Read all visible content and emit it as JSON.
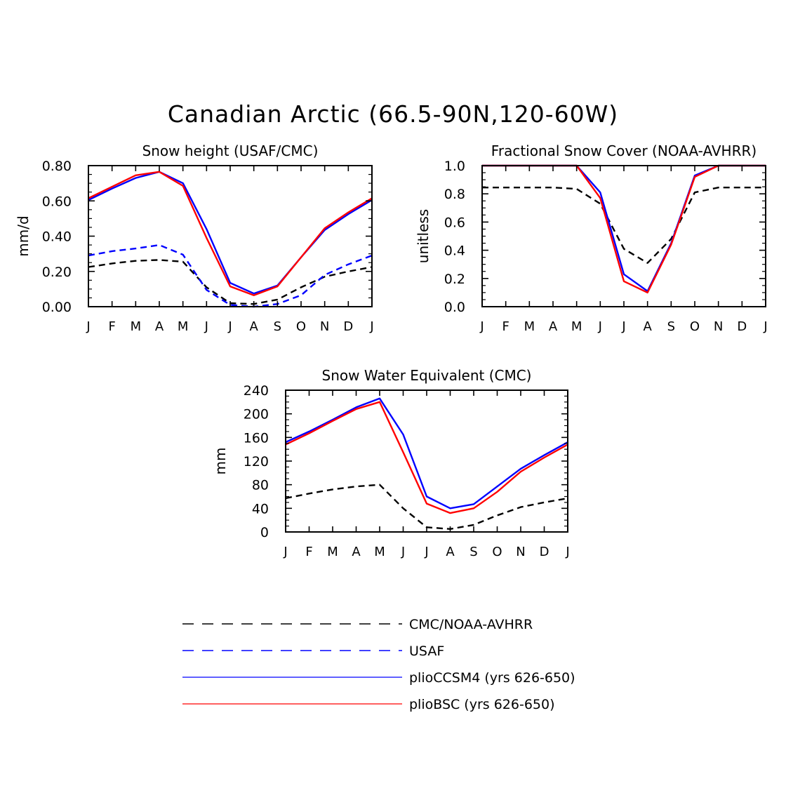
{
  "figure_title": "Canadian Arctic (66.5-90N,120-60W)",
  "legend": [
    {
      "label": "CMC/NOAA-AVHRR",
      "color": "#000000",
      "dashed": true
    },
    {
      "label": "USAF",
      "color": "#0000ff",
      "dashed": true
    },
    {
      "label": "plioCCSM4 (yrs 626-650)",
      "color": "#0000ff",
      "dashed": false
    },
    {
      "label": "plioBSC (yrs 626-650)",
      "color": "#ff0000",
      "dashed": false
    }
  ],
  "chart_data": [
    {
      "type": "line",
      "title": "Snow height (USAF/CMC)",
      "ylabel": "mm/d",
      "x": [
        "J",
        "F",
        "M",
        "A",
        "M",
        "J",
        "J",
        "A",
        "S",
        "O",
        "N",
        "D",
        "J"
      ],
      "ylim": [
        0,
        0.8
      ],
      "yticks": [
        "0.00",
        "0.20",
        "0.40",
        "0.60",
        "0.80"
      ],
      "series": [
        {
          "name": "CMC/NOAA-AVHRR",
          "color": "#000000",
          "dashed": true,
          "values": [
            0.225,
            0.245,
            0.26,
            0.265,
            0.255,
            0.11,
            0.02,
            0.015,
            0.04,
            0.11,
            0.17,
            0.2,
            0.225
          ]
        },
        {
          "name": "USAF",
          "color": "#0000ff",
          "dashed": true,
          "values": [
            0.29,
            0.315,
            0.33,
            0.35,
            0.295,
            0.095,
            0.01,
            0.0,
            0.015,
            0.065,
            0.18,
            0.24,
            0.29
          ]
        },
        {
          "name": "plioCCSM4 (yrs 626-650)",
          "color": "#0000ff",
          "dashed": false,
          "values": [
            0.605,
            0.67,
            0.73,
            0.765,
            0.7,
            0.44,
            0.135,
            0.075,
            0.12,
            0.28,
            0.435,
            0.525,
            0.605
          ]
        },
        {
          "name": "plioBSC (yrs 626-650)",
          "color": "#ff0000",
          "dashed": false,
          "values": [
            0.615,
            0.68,
            0.745,
            0.765,
            0.685,
            0.39,
            0.115,
            0.065,
            0.115,
            0.28,
            0.445,
            0.535,
            0.615
          ]
        }
      ]
    },
    {
      "type": "line",
      "title": "Fractional Snow Cover (NOAA-AVHRR)",
      "ylabel": "unitless",
      "x": [
        "J",
        "F",
        "M",
        "A",
        "M",
        "J",
        "J",
        "A",
        "S",
        "O",
        "N",
        "D",
        "J"
      ],
      "ylim": [
        0,
        1.0
      ],
      "yticks": [
        "0.0",
        "0.2",
        "0.4",
        "0.6",
        "0.8",
        "1.0"
      ],
      "series": [
        {
          "name": "CMC/NOAA-AVHRR",
          "color": "#000000",
          "dashed": true,
          "values": [
            0.845,
            0.845,
            0.845,
            0.845,
            0.835,
            0.73,
            0.41,
            0.31,
            0.48,
            0.81,
            0.845,
            0.845,
            0.845
          ]
        },
        {
          "name": "plioCCSM4 (yrs 626-650)",
          "color": "#0000ff",
          "dashed": false,
          "values": [
            1.0,
            1.0,
            1.0,
            1.0,
            1.0,
            0.81,
            0.23,
            0.11,
            0.45,
            0.93,
            1.0,
            1.0,
            1.0
          ]
        },
        {
          "name": "plioBSC (yrs 626-650)",
          "color": "#ff0000",
          "dashed": false,
          "values": [
            1.0,
            1.0,
            1.0,
            1.0,
            1.0,
            0.77,
            0.18,
            0.1,
            0.44,
            0.92,
            1.0,
            1.0,
            1.0
          ]
        }
      ]
    },
    {
      "type": "line",
      "title": "Snow Water Equivalent (CMC)",
      "ylabel": "mm",
      "x": [
        "J",
        "F",
        "M",
        "A",
        "M",
        "J",
        "J",
        "A",
        "S",
        "O",
        "N",
        "D",
        "J"
      ],
      "ylim": [
        0,
        240
      ],
      "yticks": [
        "0",
        "40",
        "80",
        "120",
        "160",
        "200",
        "240"
      ],
      "series": [
        {
          "name": "CMC/NOAA-AVHRR",
          "color": "#000000",
          "dashed": true,
          "values": [
            57,
            65,
            72,
            77,
            80,
            40,
            8,
            5,
            12,
            28,
            42,
            50,
            57
          ]
        },
        {
          "name": "plioCCSM4 (yrs 626-650)",
          "color": "#0000ff",
          "dashed": false,
          "values": [
            152,
            170,
            190,
            211,
            226,
            165,
            60,
            40,
            47,
            77,
            107,
            130,
            152
          ]
        },
        {
          "name": "plioBSC (yrs 626-650)",
          "color": "#ff0000",
          "dashed": false,
          "values": [
            148,
            167,
            188,
            208,
            220,
            135,
            48,
            32,
            40,
            68,
            102,
            126,
            148
          ]
        }
      ]
    }
  ]
}
